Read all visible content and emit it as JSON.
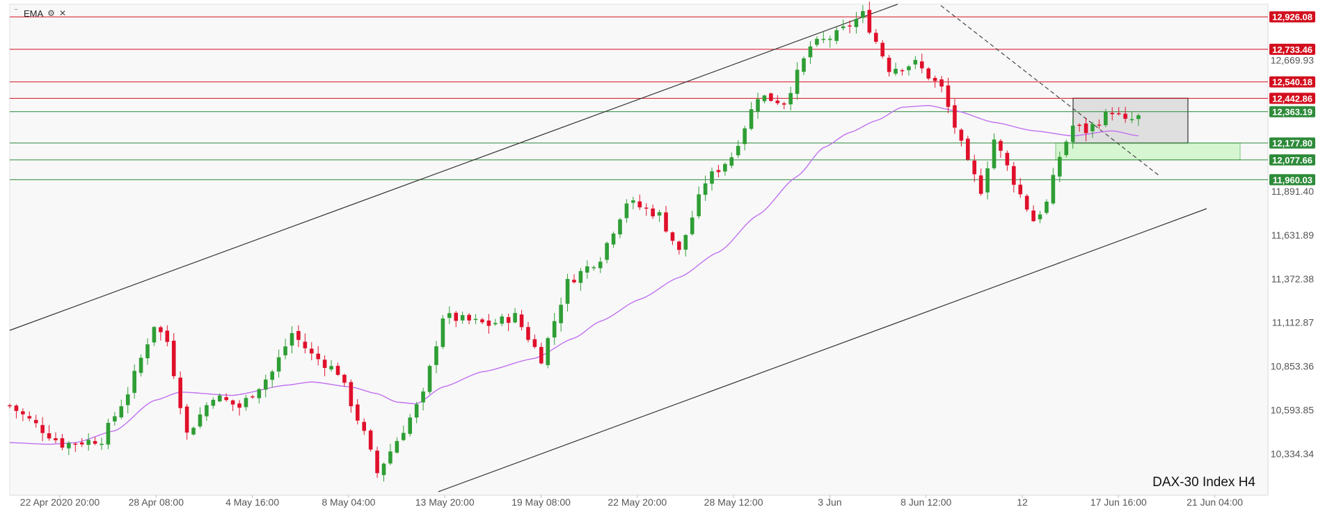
{
  "chart_data": {
    "type": "candlestick",
    "title": "",
    "symbol_label": "DAX-30 Index H4",
    "indicator": {
      "name": "EMA",
      "color": "#c070f0"
    },
    "y_range": [
      10150,
      12960
    ],
    "y_ticks": [
      "12,669.93",
      "11,891.40",
      "11,631.89",
      "11,372.38",
      "11,112.87",
      "10,853.36",
      "10,593.85",
      "10,334.34"
    ],
    "x_ticks": [
      "22 Apr 2020 20:00",
      "28 Apr 08:00",
      "4 May 16:00",
      "8 May 04:00",
      "13 May 20:00",
      "19 May 08:00",
      "22 May 20:00",
      "28 May 12:00",
      "3 Jun",
      "8 Jun 12:00",
      "12",
      "17 Jun 16:00",
      "21 Jun 04:00"
    ],
    "resistance_levels": [
      "12,926.08",
      "12,733.46",
      "12,540.18",
      "12,442.86"
    ],
    "support_levels": [
      "12,363.19",
      "12,177.80",
      "12,077.66",
      "11,960.03"
    ],
    "level_colors": {
      "resistance": "#d20f1e",
      "support": "#2e8b3a"
    },
    "anchors": [
      [
        0,
        10620
      ],
      [
        8,
        10390
      ],
      [
        14,
        10420
      ],
      [
        18,
        10700
      ],
      [
        22,
        11100
      ],
      [
        24,
        11000
      ],
      [
        27,
        10450
      ],
      [
        31,
        10680
      ],
      [
        35,
        10610
      ],
      [
        40,
        10820
      ],
      [
        43,
        11050
      ],
      [
        46,
        10920
      ],
      [
        50,
        10820
      ],
      [
        54,
        10450
      ],
      [
        56,
        10220
      ],
      [
        60,
        10480
      ],
      [
        63,
        10680
      ],
      [
        66,
        11150
      ],
      [
        73,
        11100
      ],
      [
        77,
        11150
      ],
      [
        81,
        10900
      ],
      [
        85,
        11350
      ],
      [
        90,
        11500
      ],
      [
        94,
        11830
      ],
      [
        99,
        11750
      ],
      [
        102,
        11530
      ],
      [
        106,
        11950
      ],
      [
        110,
        12100
      ],
      [
        114,
        12460
      ],
      [
        118,
        12420
      ],
      [
        122,
        12750
      ],
      [
        126,
        12820
      ],
      [
        130,
        12940
      ],
      [
        134,
        12620
      ],
      [
        138,
        12650
      ],
      [
        142,
        12500
      ],
      [
        146,
        12050
      ],
      [
        148,
        11900
      ],
      [
        150,
        12200
      ],
      [
        154,
        11870
      ],
      [
        156,
        11720
      ],
      [
        158,
        11820
      ],
      [
        160,
        12100
      ],
      [
        162,
        12280
      ],
      [
        164,
        12250
      ],
      [
        168,
        12370
      ],
      [
        170,
        12300
      ],
      [
        172,
        12330
      ]
    ],
    "ema_values": [
      [
        0,
        10400
      ],
      [
        6,
        10390
      ],
      [
        10,
        10400
      ],
      [
        16,
        10470
      ],
      [
        22,
        10650
      ],
      [
        26,
        10700
      ],
      [
        34,
        10680
      ],
      [
        42,
        10740
      ],
      [
        46,
        10760
      ],
      [
        52,
        10730
      ],
      [
        56,
        10690
      ],
      [
        59,
        10640
      ],
      [
        62,
        10630
      ],
      [
        66,
        10730
      ],
      [
        72,
        10820
      ],
      [
        80,
        10900
      ],
      [
        86,
        11020
      ],
      [
        90,
        11120
      ],
      [
        96,
        11250
      ],
      [
        102,
        11380
      ],
      [
        108,
        11530
      ],
      [
        114,
        11750
      ],
      [
        120,
        11980
      ],
      [
        124,
        12150
      ],
      [
        128,
        12240
      ],
      [
        132,
        12310
      ],
      [
        136,
        12390
      ],
      [
        140,
        12400
      ],
      [
        144,
        12370
      ],
      [
        150,
        12300
      ],
      [
        156,
        12250
      ],
      [
        162,
        12220
      ],
      [
        168,
        12250
      ],
      [
        172,
        12220
      ]
    ]
  }
}
